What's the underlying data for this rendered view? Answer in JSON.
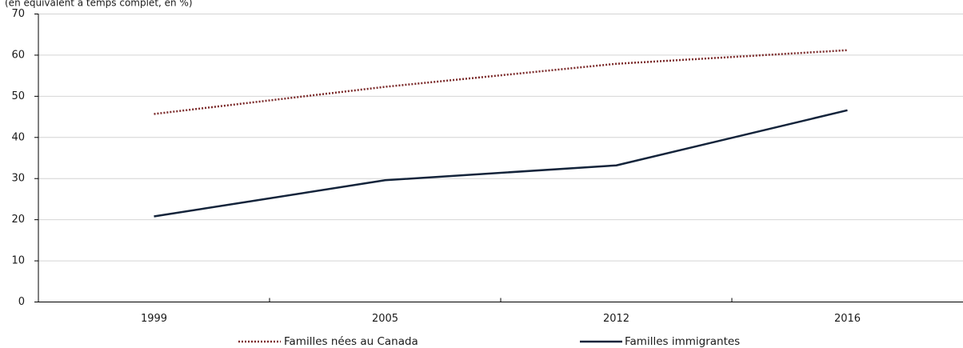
{
  "chart_data": {
    "type": "line",
    "title": "",
    "unit_label": "(en équivalent à temps complet, en %)",
    "xlabel": "",
    "ylabel": "",
    "categories": [
      "1999",
      "2005",
      "2012",
      "2016"
    ],
    "ylim": [
      0,
      70
    ],
    "y_ticks": [
      0,
      10,
      20,
      30,
      40,
      50,
      60,
      70
    ],
    "grid": true,
    "legend_position": "bottom",
    "series": [
      {
        "name": "Familles nées au Canada",
        "values": [
          45.7,
          52.3,
          57.9,
          61.2
        ],
        "color": "#7b2a2a",
        "style": "dotted"
      },
      {
        "name": "Familles immigrantes",
        "values": [
          20.8,
          29.6,
          33.2,
          46.6
        ],
        "color": "#14243b",
        "style": "solid"
      }
    ]
  }
}
